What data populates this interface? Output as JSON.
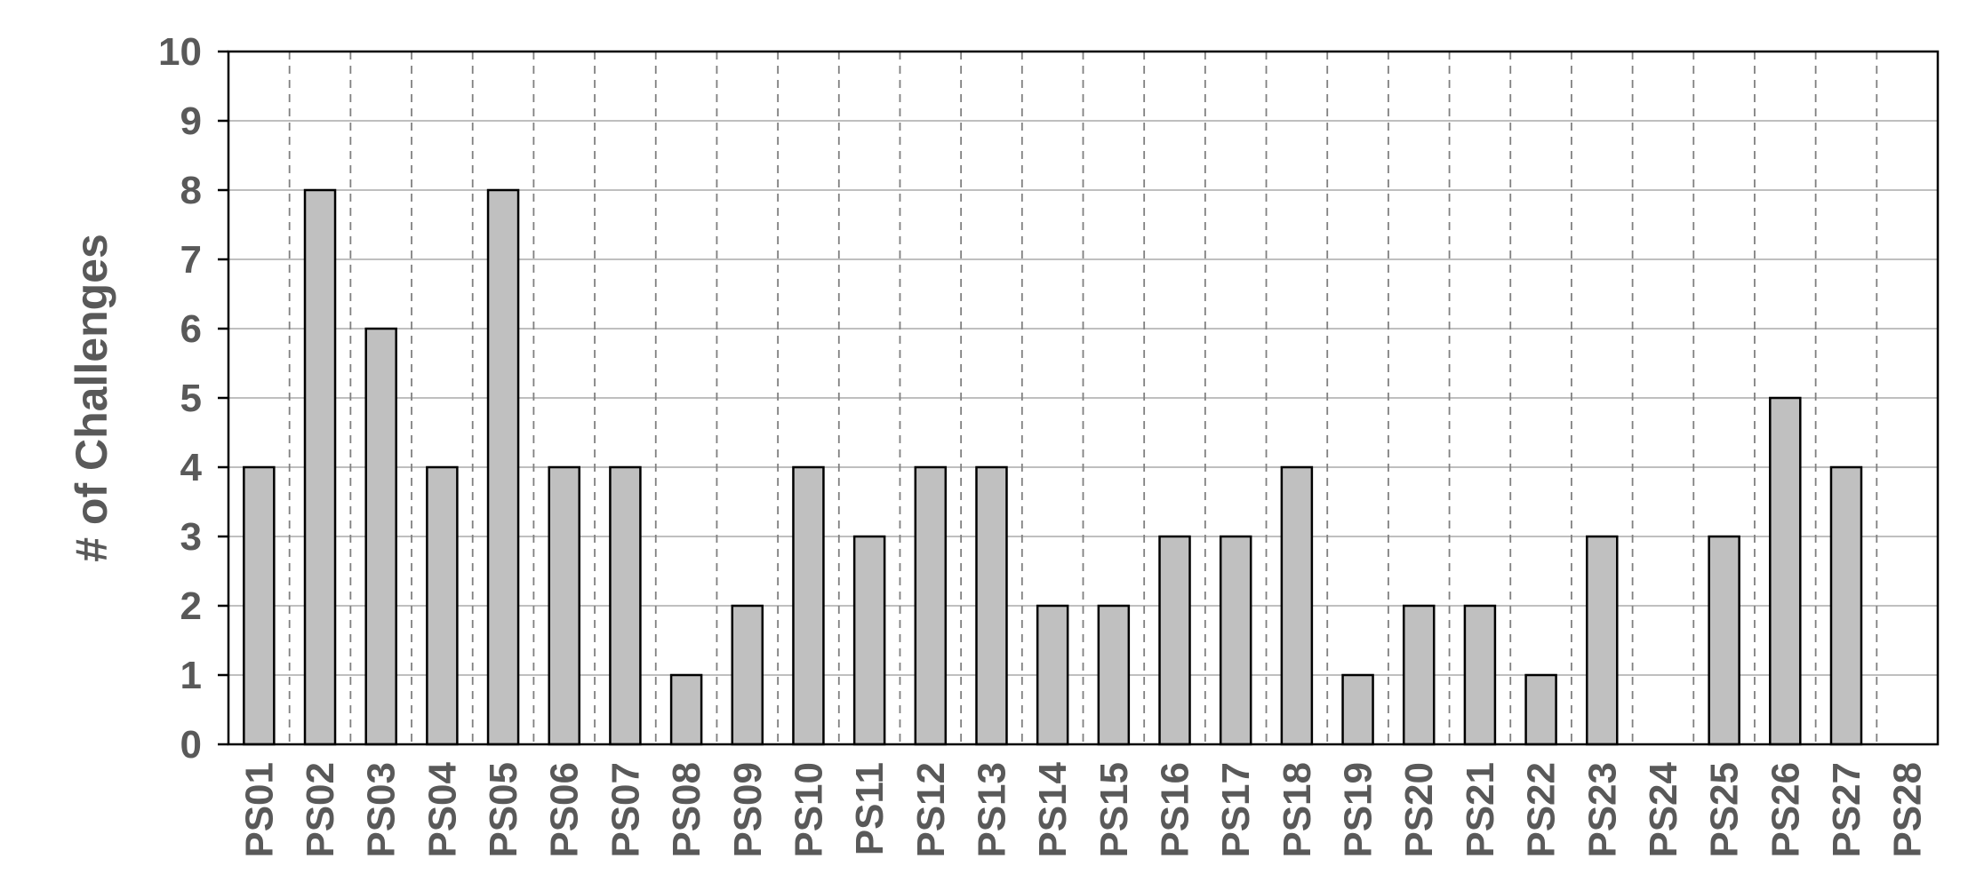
{
  "chart_data": {
    "type": "bar",
    "title": "",
    "xlabel": "",
    "ylabel": "# of Challenges",
    "ylim": [
      0,
      10
    ],
    "yticks": [
      0,
      1,
      2,
      3,
      4,
      5,
      6,
      7,
      8,
      9,
      10
    ],
    "grid": true,
    "legend": "none",
    "categories": [
      "PS01",
      "PS02",
      "PS03",
      "PS04",
      "PS05",
      "PS06",
      "PS07",
      "PS08",
      "PS09",
      "PS10",
      "PS11",
      "PS12",
      "PS13",
      "PS14",
      "PS15",
      "PS16",
      "PS17",
      "PS18",
      "PS19",
      "PS20",
      "PS21",
      "PS22",
      "PS23",
      "PS24",
      "PS25",
      "PS26",
      "PS27",
      "PS28"
    ],
    "values": [
      4,
      8,
      6,
      4,
      8,
      4,
      4,
      1,
      2,
      4,
      3,
      4,
      4,
      2,
      2,
      3,
      3,
      4,
      1,
      2,
      2,
      1,
      3,
      0,
      3,
      5,
      4,
      0
    ],
    "colors": {
      "bar_fill": "#c0c0c0",
      "bar_stroke": "#000000",
      "hgrid": "#bfbfbf",
      "vgrid": "#808080",
      "text": "#595959"
    }
  }
}
